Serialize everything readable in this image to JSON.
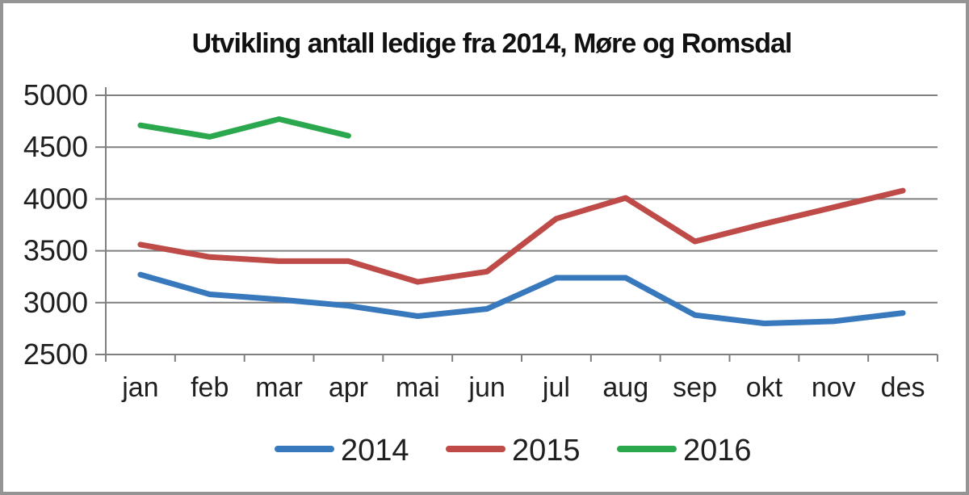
{
  "figure": {
    "background": "#ffffff",
    "border_color": "#949494"
  },
  "chart_data": {
    "type": "line",
    "title": "Utvikling antall ledige fra 2014, Møre og Romsdal",
    "categories": [
      "jan",
      "feb",
      "mar",
      "apr",
      "mai",
      "jun",
      "jul",
      "aug",
      "sep",
      "okt",
      "nov",
      "des"
    ],
    "series": [
      {
        "name": "2014",
        "color": "#3879BD",
        "values": [
          3270,
          3080,
          3030,
          2970,
          2870,
          2940,
          3240,
          3240,
          2880,
          2800,
          2820,
          2900
        ]
      },
      {
        "name": "2015",
        "color": "#BE4B48",
        "values": [
          3560,
          3440,
          3400,
          3400,
          3200,
          3300,
          3810,
          4010,
          3590,
          3760,
          3920,
          4080
        ]
      },
      {
        "name": "2016",
        "color": "#2BA84D",
        "values": [
          4710,
          4600,
          4770,
          4610
        ]
      }
    ],
    "y_ticks": [
      5000,
      4500,
      4000,
      3500,
      3000,
      2500
    ],
    "ylim": [
      2500,
      5000
    ],
    "xlabel": "",
    "ylabel": "",
    "grid": true,
    "gridline_color": "#7f7f7f",
    "axis_color": "#7f7f7f",
    "legend_position": "bottom"
  }
}
